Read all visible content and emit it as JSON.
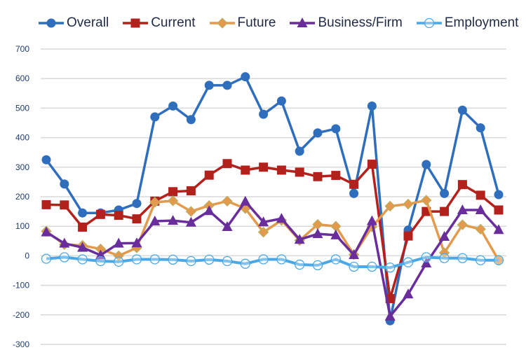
{
  "chart_data": {
    "type": "line",
    "title": "",
    "xlabel": "",
    "ylabel": "",
    "ylim": [
      -300,
      700
    ],
    "yticks": [
      "700",
      "600",
      "500",
      "400",
      "300",
      "200",
      "100",
      "0",
      "-100",
      "-200",
      "-300"
    ],
    "grid": true,
    "legend_position": "top",
    "x": [
      1,
      2,
      3,
      4,
      5,
      6,
      7,
      8,
      9,
      10,
      11,
      12,
      13,
      14,
      15,
      16,
      17,
      18,
      19,
      20,
      21,
      22,
      23,
      24,
      25,
      26
    ],
    "series": [
      {
        "name": "Overall",
        "color": "#2e6ebd",
        "marker": "circle",
        "values": [
          325,
          243,
          145,
          145,
          155,
          177,
          470,
          507,
          461,
          577,
          577,
          606,
          479,
          524,
          354,
          416,
          430,
          211,
          507,
          -220,
          87,
          309,
          211,
          493,
          433,
          207
        ]
      },
      {
        "name": "Current",
        "color": "#b3211c",
        "marker": "square",
        "values": [
          173,
          172,
          97,
          140,
          137,
          125,
          185,
          217,
          220,
          273,
          312,
          290,
          300,
          290,
          283,
          268,
          272,
          242,
          310,
          -145,
          67,
          150,
          150,
          241,
          205,
          155
        ]
      },
      {
        "name": "Future",
        "color": "#e39a4c",
        "marker": "diamond",
        "values": [
          83,
          38,
          35,
          23,
          0,
          27,
          181,
          186,
          150,
          170,
          185,
          160,
          80,
          120,
          52,
          106,
          100,
          4,
          98,
          168,
          175,
          188,
          10,
          105,
          90,
          -15
        ]
      },
      {
        "name": "Business/Firm",
        "color": "#6a2d9c",
        "marker": "triangle",
        "values": [
          80,
          42,
          28,
          2,
          42,
          43,
          117,
          119,
          113,
          152,
          98,
          184,
          114,
          126,
          55,
          74,
          70,
          3,
          118,
          -205,
          -130,
          -25,
          65,
          155,
          155,
          88
        ]
      },
      {
        "name": "Employment",
        "color": "#4ba8e6",
        "marker": "open-circle",
        "values": [
          -10,
          -5,
          -12,
          -18,
          -20,
          -12,
          -12,
          -13,
          -18,
          -13,
          -18,
          -27,
          -12,
          -12,
          -30,
          -32,
          -12,
          -37,
          -37,
          -40,
          -22,
          -5,
          -8,
          -8,
          -15,
          -15
        ]
      }
    ]
  }
}
